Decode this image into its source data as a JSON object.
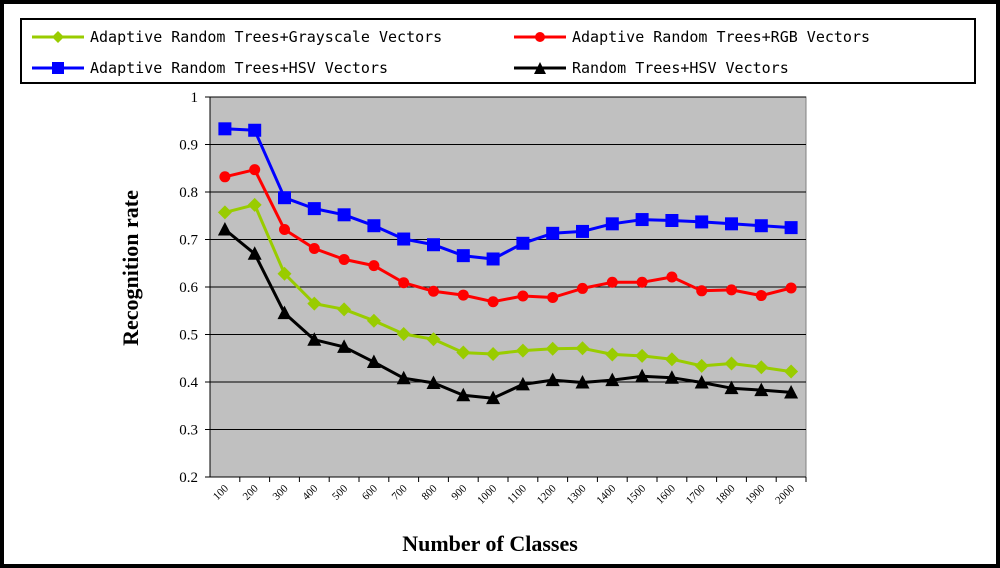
{
  "chart_data": {
    "type": "line",
    "xlabel": "Number of Classes",
    "ylabel": "Recognition rate",
    "ylim": [
      0.2,
      1
    ],
    "yticks": [
      "0.2",
      "0.3",
      "0.4",
      "0.5",
      "0.6",
      "0.7",
      "0.8",
      "0.9",
      "1"
    ],
    "categories": [
      "100",
      "200",
      "300",
      "400",
      "500",
      "600",
      "700",
      "800",
      "900",
      "1000",
      "1100",
      "1200",
      "1300",
      "1400",
      "1500",
      "1600",
      "1700",
      "1800",
      "1900",
      "2000"
    ],
    "grid": "horizontal",
    "plot_background": "#c0c0c0",
    "legend_position": "top",
    "series": [
      {
        "name": "Adaptive Random Trees+Grayscale Vectors",
        "color": "#99cc00",
        "marker": "diamond",
        "values": [
          0.757,
          0.773,
          0.628,
          0.565,
          0.553,
          0.529,
          0.501,
          0.49,
          0.462,
          0.459,
          0.466,
          0.47,
          0.471,
          0.458,
          0.455,
          0.448,
          0.434,
          0.439,
          0.431,
          0.422
        ]
      },
      {
        "name": "Adaptive Random Trees+RGB Vectors",
        "color": "#ff0000",
        "marker": "circle",
        "values": [
          0.832,
          0.847,
          0.721,
          0.681,
          0.658,
          0.645,
          0.609,
          0.591,
          0.583,
          0.569,
          0.581,
          0.578,
          0.597,
          0.61,
          0.61,
          0.621,
          0.592,
          0.594,
          0.582,
          0.598
        ]
      },
      {
        "name": "Adaptive Random Trees+HSV Vectors",
        "color": "#0000ff",
        "marker": "square",
        "values": [
          0.933,
          0.93,
          0.788,
          0.765,
          0.752,
          0.729,
          0.701,
          0.689,
          0.666,
          0.659,
          0.692,
          0.713,
          0.717,
          0.733,
          0.742,
          0.74,
          0.737,
          0.733,
          0.729,
          0.725
        ]
      },
      {
        "name": "Random Trees+HSV Vectors",
        "color": "#000000",
        "marker": "triangle",
        "values": [
          0.721,
          0.67,
          0.545,
          0.489,
          0.474,
          0.442,
          0.408,
          0.398,
          0.372,
          0.366,
          0.395,
          0.404,
          0.399,
          0.404,
          0.412,
          0.409,
          0.399,
          0.387,
          0.383,
          0.378
        ]
      }
    ]
  }
}
